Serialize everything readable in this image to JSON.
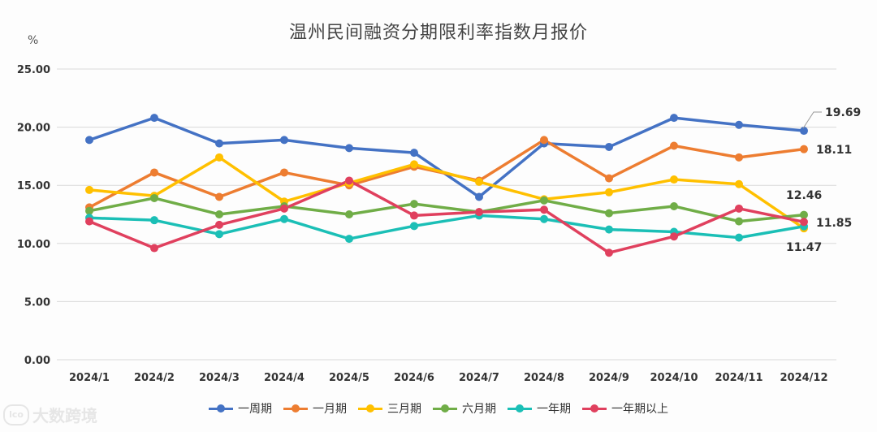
{
  "chart_data": {
    "type": "line",
    "title": "温州民间融资分期限利率指数月报价",
    "unit": "%",
    "xlabel": "",
    "ylabel": "%",
    "ylim": [
      0,
      25
    ],
    "yticks": [
      "0.00",
      "5.00",
      "10.00",
      "15.00",
      "20.00",
      "25.00"
    ],
    "grid": true,
    "legend_position": "bottom",
    "categories": [
      "2024/1",
      "2024/2",
      "2024/3",
      "2024/4",
      "2024/5",
      "2024/6",
      "2024/7",
      "2024/8",
      "2024/9",
      "2024/10",
      "2024/11",
      "2024/12"
    ],
    "series": [
      {
        "name": "一周期",
        "color": "#4472c4",
        "values": [
          18.9,
          20.8,
          18.6,
          18.9,
          18.2,
          17.8,
          14.0,
          18.6,
          18.3,
          20.8,
          20.2,
          19.69
        ]
      },
      {
        "name": "一月期",
        "color": "#ed7d31",
        "values": [
          13.1,
          16.1,
          14.0,
          16.1,
          15.0,
          16.6,
          15.4,
          18.9,
          15.6,
          18.4,
          17.4,
          18.11
        ]
      },
      {
        "name": "三月期",
        "color": "#ffc000",
        "values": [
          14.6,
          14.1,
          17.4,
          13.6,
          15.2,
          16.8,
          15.3,
          13.8,
          14.4,
          15.5,
          15.1,
          11.3
        ]
      },
      {
        "name": "六月期",
        "color": "#70ad47",
        "values": [
          12.8,
          13.9,
          12.5,
          13.2,
          12.5,
          13.4,
          12.7,
          13.7,
          12.6,
          13.2,
          11.9,
          12.46
        ]
      },
      {
        "name": "一年期",
        "color": "#1bbfb6",
        "values": [
          12.2,
          12.0,
          10.8,
          12.1,
          10.4,
          11.5,
          12.4,
          12.1,
          11.2,
          11.0,
          10.5,
          11.47
        ]
      },
      {
        "name": "一年期以上",
        "color": "#e0405e",
        "values": [
          11.9,
          9.6,
          11.6,
          13.0,
          15.4,
          12.4,
          12.7,
          12.9,
          9.2,
          10.6,
          13.0,
          11.85
        ]
      }
    ],
    "end_labels": [
      "19.69",
      "18.11",
      "12.46",
      "11.85",
      "11.47"
    ]
  },
  "watermark": {
    "icon_text": "lco",
    "text": "大数跨境"
  }
}
